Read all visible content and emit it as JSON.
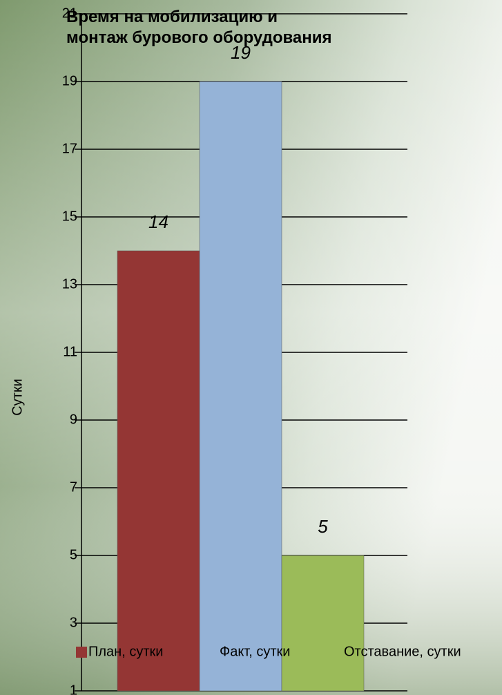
{
  "chart_data": {
    "type": "bar",
    "title": "Время на мобилизацию и монтаж бурового оборудования",
    "y_label": "Сутки",
    "categories": [
      null
    ],
    "series": [
      {
        "name": "План, сутки",
        "color": "#943634",
        "values": [
          14
        ]
      },
      {
        "name": "Факт, сутки",
        "color": "#95b3d7",
        "values": [
          19
        ]
      },
      {
        "name": "Отставание, сутки",
        "color": "#9bbb59",
        "values": [
          5
        ]
      }
    ],
    "ylim": [
      1,
      21
    ],
    "yticks": [
      1,
      3,
      5,
      7,
      9,
      11,
      13,
      15,
      17,
      19,
      21
    ],
    "grid": true,
    "legend": "bottom"
  }
}
